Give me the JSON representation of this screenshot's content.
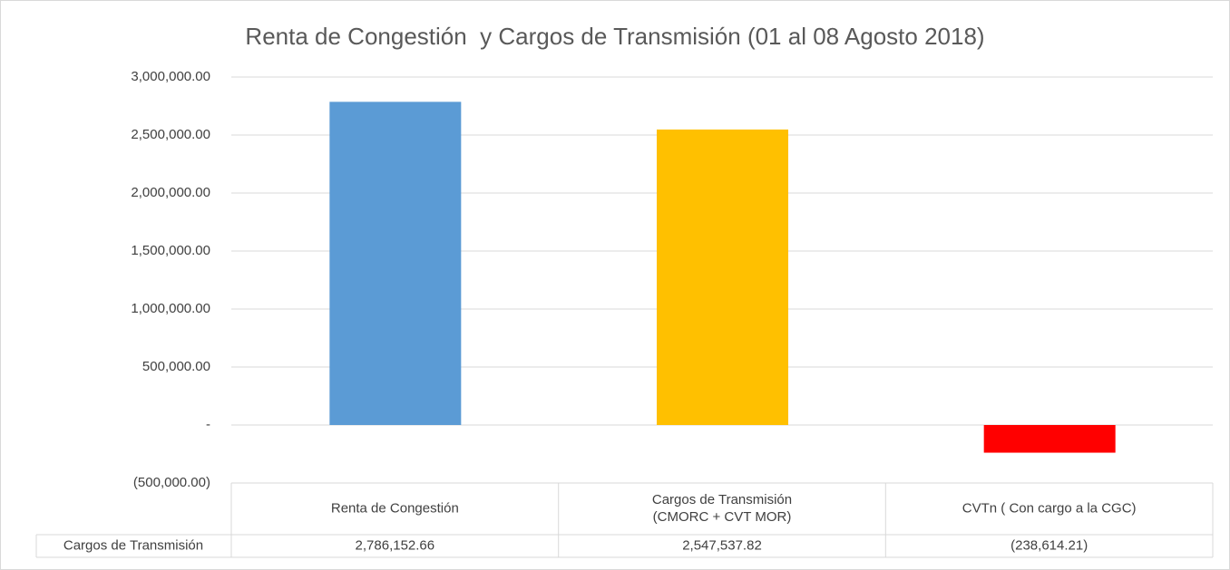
{
  "chart_data": {
    "type": "bar",
    "title": "Renta de Congestión  y Cargos de Transmisión (01 al 08 Agosto 2018)",
    "categories": [
      "Renta de Congestión",
      "Cargos de Transmisión\n(CMORC + CVT MOR)",
      "CVTn ( Con cargo a la CGC)"
    ],
    "series": [
      {
        "name": "Cargos de Transmisión",
        "colors": [
          "#5b9bd5",
          "#ffc000",
          "#ff0000"
        ],
        "values": [
          2786152.66,
          2547537.82,
          -238614.21
        ],
        "value_labels": [
          "2,786,152.66",
          "2,547,537.82",
          "(238,614.21)"
        ]
      }
    ],
    "ylim": [
      -500000,
      3000000
    ],
    "yticks": [
      {
        "value": -500000,
        "label": "(500,000.00)"
      },
      {
        "value": 0,
        "label": "-"
      },
      {
        "value": 500000,
        "label": "500,000.00"
      },
      {
        "value": 1000000,
        "label": "1,000,000.00"
      },
      {
        "value": 1500000,
        "label": "1,500,000.00"
      },
      {
        "value": 2000000,
        "label": "2,000,000.00"
      },
      {
        "value": 2500000,
        "label": "2,500,000.00"
      },
      {
        "value": 3000000,
        "label": "3,000,000.00"
      }
    ],
    "grid": true
  }
}
